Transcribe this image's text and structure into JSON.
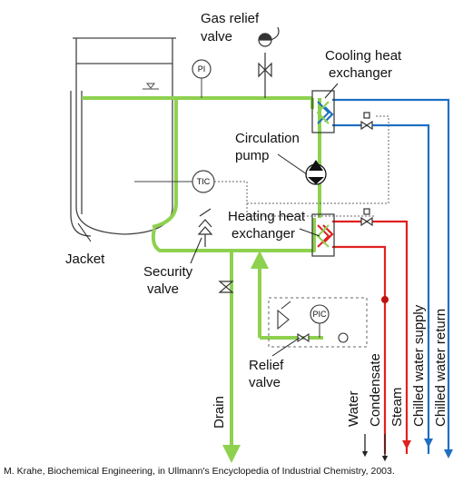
{
  "labels": {
    "gas_relief_valve_line1": "Gas relief",
    "gas_relief_valve_line2": "valve",
    "cooling_hx_line1": "Cooling heat",
    "cooling_hx_line2": "exchanger",
    "circulation_pump_line1": "Circulation",
    "circulation_pump_line2": "pump",
    "heating_hx_line1": "Heating heat",
    "heating_hx_line2": "exchanger",
    "jacket": "Jacket",
    "security_valve_line1": "Security",
    "security_valve_line2": "valve",
    "relief_valve_line1": "Relief",
    "relief_valve_line2": "valve",
    "drain": "Drain",
    "water": "Water",
    "condensate": "Condensate",
    "steam": "Steam",
    "chilled_water_supply": "Chilled water supply",
    "chilled_water_return": "Chilled water return"
  },
  "instruments": {
    "pi": "PI",
    "tic": "TIC",
    "pic": "PIC"
  },
  "caption": "M. Krahe, Biochemical Engineering, in Ullmann's Encyclopedia of Industrial Chemistry, 2003.",
  "colors": {
    "circuit": "#8ed14f",
    "chilled": "#1f6fc2",
    "steam": "#e02020",
    "equipment": "#444444"
  }
}
